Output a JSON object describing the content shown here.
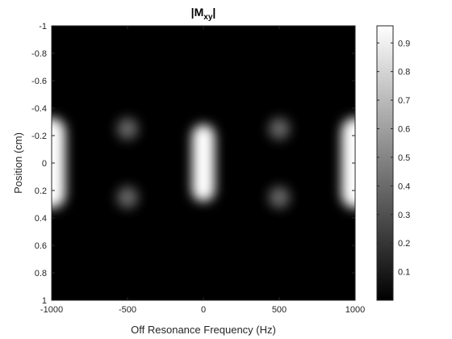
{
  "chart_data": {
    "type": "heatmap",
    "title_main": "|M",
    "title_sub": "xy",
    "title_end": "|",
    "xlabel": "Off Resonance Frequency (Hz)",
    "ylabel": "Position (cm)",
    "xlim": [
      -1000,
      1000
    ],
    "ylim": [
      -1,
      1
    ],
    "y_direction": "reversed",
    "x_ticks": [
      -1000,
      -500,
      0,
      500,
      1000
    ],
    "x_tick_labels": [
      "-1000",
      "-500",
      "0",
      "500",
      "1000"
    ],
    "y_ticks": [
      -1,
      -0.8,
      -0.6,
      -0.4,
      -0.2,
      0,
      0.2,
      0.4,
      0.6,
      0.8,
      1
    ],
    "y_tick_labels": [
      "-1",
      "-0.8",
      "-0.6",
      "-0.4",
      "-0.2",
      "0",
      "0.2",
      "0.4",
      "0.6",
      "0.8",
      "1"
    ],
    "colormap": "gray",
    "clim": [
      0,
      0.96
    ],
    "colorbar_ticks": [
      0.1,
      0.2,
      0.3,
      0.4,
      0.5,
      0.6,
      0.7,
      0.8,
      0.9
    ],
    "colorbar_tick_labels": [
      "0.1",
      "0.2",
      "0.3",
      "0.4",
      "0.5",
      "0.6",
      "0.7",
      "0.8",
      "0.9"
    ],
    "blobs": [
      {
        "freq_hz": -1000,
        "pos_cm": 0,
        "freq_halfwidth_hz": 90,
        "pos_halfwidth_cm": 0.33,
        "peak": 0.96
      },
      {
        "freq_hz": 0,
        "pos_cm": 0,
        "freq_halfwidth_hz": 75,
        "pos_halfwidth_cm": 0.28,
        "peak": 0.96
      },
      {
        "freq_hz": 1000,
        "pos_cm": 0,
        "freq_halfwidth_hz": 90,
        "pos_halfwidth_cm": 0.33,
        "peak": 0.96
      },
      {
        "freq_hz": -500,
        "pos_cm": -0.25,
        "freq_halfwidth_hz": 70,
        "pos_halfwidth_cm": 0.08,
        "peak": 0.38
      },
      {
        "freq_hz": -500,
        "pos_cm": 0.25,
        "freq_halfwidth_hz": 70,
        "pos_halfwidth_cm": 0.08,
        "peak": 0.38
      },
      {
        "freq_hz": 500,
        "pos_cm": -0.25,
        "freq_halfwidth_hz": 70,
        "pos_halfwidth_cm": 0.08,
        "peak": 0.38
      },
      {
        "freq_hz": 500,
        "pos_cm": 0.25,
        "freq_halfwidth_hz": 70,
        "pos_halfwidth_cm": 0.08,
        "peak": 0.38
      }
    ]
  }
}
